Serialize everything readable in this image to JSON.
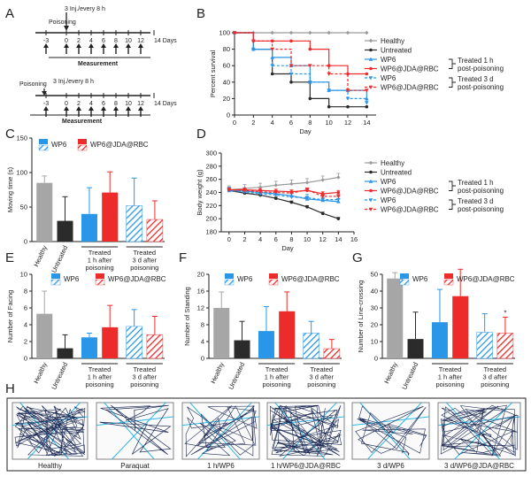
{
  "colors": {
    "healthy": "#a6a6a6",
    "untreated": "#2b2b2b",
    "wp6": "#2a96e8",
    "jda": "#ee2b2b",
    "grid_gray": "#9a9a9a",
    "track": "#1c2a55",
    "cyan": "#2fb7e6"
  },
  "panel_labels": [
    "A",
    "B",
    "C",
    "D",
    "E",
    "F",
    "G",
    "H"
  ],
  "panel_a": {
    "timeline1": {
      "poisoning": "Poisoning",
      "injection": "3 Inj./every 8 h",
      "ticks": [
        "-3",
        "0",
        "2",
        "4",
        "6",
        "8",
        "10",
        "12",
        "14 Days"
      ],
      "measurement": "Measurement"
    },
    "timeline2": {
      "poisoning": "Poisoning",
      "injection": "3 Inj./every 8 h",
      "ticks": [
        "-3",
        "0",
        "2",
        "4",
        "6",
        "8",
        "10",
        "12",
        "14 Days"
      ],
      "measurement": "Measurement"
    }
  },
  "legend_lines": {
    "healthy": "Healthy",
    "untreated": "Untreated",
    "wp6": "WP6",
    "jda": "WP6@JDA@RBC",
    "group1": [
      "Treated 1 h",
      "post-poisoning"
    ],
    "group2": [
      "Treated 3 d",
      "post-poisoning"
    ]
  },
  "legend_bars": {
    "wp6": "WP6",
    "jda": "WP6@JDA@RBC"
  },
  "bar_categories": {
    "healthy": "Healthy",
    "untreated": "Untreated",
    "group1": [
      "Treated",
      "1 h after",
      "poisoning"
    ],
    "group2": [
      "Treated",
      "3 d after",
      "poisoning"
    ]
  },
  "chart_data": [
    {
      "panel": "B",
      "type": "line",
      "xlabel": "Day",
      "ylabel": "Percent survival",
      "xlim": [
        0,
        15
      ],
      "ylim": [
        0,
        100
      ],
      "xticks": [
        0,
        2,
        4,
        6,
        8,
        10,
        12,
        14
      ],
      "yticks": [
        0,
        20,
        40,
        60,
        80,
        100
      ],
      "series": [
        {
          "name": "Healthy",
          "x": [
            0,
            2,
            4,
            6,
            8,
            10,
            12,
            14
          ],
          "y": [
            100,
            100,
            100,
            100,
            100,
            100,
            100,
            100
          ]
        },
        {
          "name": "Untreated",
          "x": [
            0,
            2,
            4,
            6,
            8,
            10,
            12,
            14
          ],
          "y": [
            100,
            80,
            50,
            40,
            20,
            10,
            10,
            10
          ]
        },
        {
          "name": "WP6",
          "x": [
            0,
            2,
            4,
            6,
            8,
            10,
            12,
            14
          ],
          "y": [
            100,
            80,
            70,
            60,
            40,
            30,
            30,
            20
          ]
        },
        {
          "name": "WP6@JDA@RBC",
          "x": [
            0,
            2,
            4,
            6,
            8,
            10,
            12,
            14
          ],
          "y": [
            100,
            90,
            90,
            90,
            80,
            60,
            50,
            50
          ]
        },
        {
          "name": "WP6",
          "x": [
            0,
            2,
            4,
            6,
            8,
            10,
            12,
            14
          ],
          "y": [
            100,
            80,
            60,
            50,
            40,
            30,
            20,
            15
          ]
        },
        {
          "name": "WP6@JDA@RBC",
          "x": [
            0,
            2,
            4,
            6,
            8,
            10,
            12,
            14
          ],
          "y": [
            100,
            90,
            80,
            60,
            60,
            50,
            30,
            30
          ]
        }
      ]
    },
    {
      "panel": "D",
      "type": "line",
      "xlabel": "Day",
      "ylabel": "Body weight (g)",
      "xlim": [
        -1,
        16
      ],
      "ylim": [
        180,
        300
      ],
      "xticks": [
        0,
        2,
        4,
        6,
        8,
        10,
        12,
        14,
        16
      ],
      "yticks": [
        180,
        200,
        220,
        240,
        260,
        280,
        300
      ],
      "series": [
        {
          "name": "Healthy",
          "x": [
            0,
            2,
            4,
            6,
            8,
            10,
            12,
            14
          ],
          "y": [
            244,
            246,
            248,
            251,
            253,
            255,
            259,
            263
          ]
        },
        {
          "name": "Untreated",
          "x": [
            0,
            2,
            4,
            6,
            8,
            10,
            12,
            14
          ],
          "y": [
            243,
            239,
            236,
            231,
            225,
            218,
            208,
            200
          ]
        },
        {
          "name": "WP6",
          "x": [
            0,
            2,
            4,
            6,
            8,
            10,
            12,
            14
          ],
          "y": [
            243,
            242,
            240,
            238,
            235,
            230,
            228,
            226
          ]
        },
        {
          "name": "WP6@JDA@RBC",
          "x": [
            0,
            2,
            4,
            6,
            8,
            10,
            12,
            14
          ],
          "y": [
            244,
            244,
            243,
            242,
            241,
            243,
            238,
            240
          ]
        },
        {
          "name": "WP6",
          "x": [
            0,
            2,
            4,
            6,
            8,
            10,
            12,
            14
          ],
          "y": [
            243,
            241,
            238,
            236,
            233,
            232,
            229,
            229
          ]
        },
        {
          "name": "WP6@JDA@RBC",
          "x": [
            0,
            2,
            4,
            6,
            8,
            10,
            12,
            14
          ],
          "y": [
            244,
            243,
            241,
            240,
            239,
            244,
            234,
            234
          ]
        }
      ]
    },
    {
      "panel": "C",
      "type": "bar",
      "ylabel": "Moving time (s)",
      "ylim": [
        0,
        150
      ],
      "yticks": [
        0,
        50,
        100,
        150
      ],
      "values": [
        85,
        30,
        40,
        71,
        52,
        32
      ],
      "errors": [
        10,
        35,
        38,
        30,
        40,
        27
      ]
    },
    {
      "panel": "E",
      "type": "bar",
      "ylabel": "Number of Facing",
      "ylim": [
        0,
        10
      ],
      "yticks": [
        0,
        2,
        4,
        6,
        8,
        10
      ],
      "values": [
        5.3,
        1.2,
        2.5,
        3.7,
        3.8,
        2.8
      ],
      "errors": [
        2.7,
        1.6,
        0.5,
        2.6,
        2.0,
        2.2
      ]
    },
    {
      "panel": "F",
      "type": "bar",
      "ylabel": "Number of Standing",
      "ylim": [
        0,
        20
      ],
      "yticks": [
        0,
        4,
        8,
        12,
        16,
        20
      ],
      "values": [
        12,
        4.3,
        6.5,
        11.2,
        6.0,
        2.3
      ],
      "errors": [
        3.8,
        4.5,
        5.8,
        4.6,
        2.8,
        2.2
      ]
    },
    {
      "panel": "G",
      "type": "bar",
      "ylabel": "Number of Line-crossing",
      "ylim": [
        0,
        50
      ],
      "yticks": [
        0,
        10,
        20,
        30,
        40,
        50
      ],
      "values": [
        47.5,
        11.5,
        21.5,
        37,
        15.5,
        15
      ],
      "errors": [
        3.5,
        16,
        19.5,
        16,
        11,
        9.5
      ],
      "annotation": "*"
    }
  ],
  "panel_h": {
    "labels": [
      "Healthy",
      "Paraquat",
      "1 h/WP6",
      "1 h/WP6@JDA@RBC",
      "3 d/WP6",
      "3 d/WP6@JDA@RBC"
    ]
  }
}
